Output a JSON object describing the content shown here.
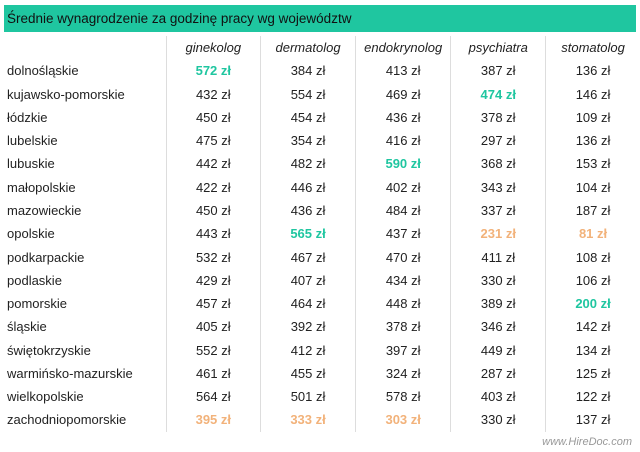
{
  "title": "Średnie wynagrodzenie za godzinę pracy wg województw",
  "colors": {
    "header_bg": "#1fc6a0",
    "max_highlight": "#1fc6a0",
    "min_highlight": "#f2b27a"
  },
  "columns": [
    "ginekolog",
    "dermatolog",
    "endokrynolog",
    "psychiatra",
    "stomatolog"
  ],
  "rows": [
    {
      "region": "dolnośląskie",
      "values": [
        "572 zł",
        "384 zł",
        "413 zł",
        "387 zł",
        "136 zł"
      ],
      "highlight": [
        "max",
        "",
        "",
        "",
        ""
      ]
    },
    {
      "region": "kujawsko-pomorskie",
      "values": [
        "432 zł",
        "554 zł",
        "469 zł",
        "474 zł",
        "146 zł"
      ],
      "highlight": [
        "",
        "",
        "",
        "max",
        ""
      ]
    },
    {
      "region": "łódzkie",
      "values": [
        "450 zł",
        "454 zł",
        "436 zł",
        "378 zł",
        "109 zł"
      ],
      "highlight": [
        "",
        "",
        "",
        "",
        ""
      ]
    },
    {
      "region": "lubelskie",
      "values": [
        "475 zł",
        "354 zł",
        "416 zł",
        "297 zł",
        "136 zł"
      ],
      "highlight": [
        "",
        "",
        "",
        "",
        ""
      ]
    },
    {
      "region": "lubuskie",
      "values": [
        "442 zł",
        "482 zł",
        "590 zł",
        "368 zł",
        "153 zł"
      ],
      "highlight": [
        "",
        "",
        "max",
        "",
        ""
      ]
    },
    {
      "region": "małopolskie",
      "values": [
        "422 zł",
        "446 zł",
        "402 zł",
        "343 zł",
        "104 zł"
      ],
      "highlight": [
        "",
        "",
        "",
        "",
        ""
      ]
    },
    {
      "region": "mazowieckie",
      "values": [
        "450 zł",
        "436 zł",
        "484 zł",
        "337 zł",
        "187 zł"
      ],
      "highlight": [
        "",
        "",
        "",
        "",
        ""
      ]
    },
    {
      "region": "opolskie",
      "values": [
        "443 zł",
        "565 zł",
        "437 zł",
        "231 zł",
        "81 zł"
      ],
      "highlight": [
        "",
        "max",
        "",
        "min",
        "min"
      ]
    },
    {
      "region": "podkarpackie",
      "values": [
        "532 zł",
        "467 zł",
        "470 zł",
        "411 zł",
        "108 zł"
      ],
      "highlight": [
        "",
        "",
        "",
        "",
        ""
      ]
    },
    {
      "region": "podlaskie",
      "values": [
        "429 zł",
        "407 zł",
        "434 zł",
        "330 zł",
        "106 zł"
      ],
      "highlight": [
        "",
        "",
        "",
        "",
        ""
      ]
    },
    {
      "region": "pomorskie",
      "values": [
        "457 zł",
        "464 zł",
        "448 zł",
        "389 zł",
        "200 zł"
      ],
      "highlight": [
        "",
        "",
        "",
        "",
        "max"
      ]
    },
    {
      "region": "śląskie",
      "values": [
        "405 zł",
        "392 zł",
        "378 zł",
        "346 zł",
        "142 zł"
      ],
      "highlight": [
        "",
        "",
        "",
        "",
        ""
      ]
    },
    {
      "region": "świętokrzyskie",
      "values": [
        "552 zł",
        "412 zł",
        "397 zł",
        "449 zł",
        "134 zł"
      ],
      "highlight": [
        "",
        "",
        "",
        "",
        ""
      ]
    },
    {
      "region": "warmińsko-mazurskie",
      "values": [
        "461 zł",
        "455 zł",
        "324 zł",
        "287 zł",
        "125 zł"
      ],
      "highlight": [
        "",
        "",
        "",
        "",
        ""
      ]
    },
    {
      "region": "wielkopolskie",
      "values": [
        "564 zł",
        "501 zł",
        "578 zł",
        "403 zł",
        "122 zł"
      ],
      "highlight": [
        "",
        "",
        "",
        "",
        ""
      ]
    },
    {
      "region": "zachodniopomorskie",
      "values": [
        "395 zł",
        "333 zł",
        "303 zł",
        "330 zł",
        "137 zł"
      ],
      "highlight": [
        "min",
        "min",
        "min",
        "",
        ""
      ]
    }
  ],
  "footer": "www.HireDoc.com"
}
